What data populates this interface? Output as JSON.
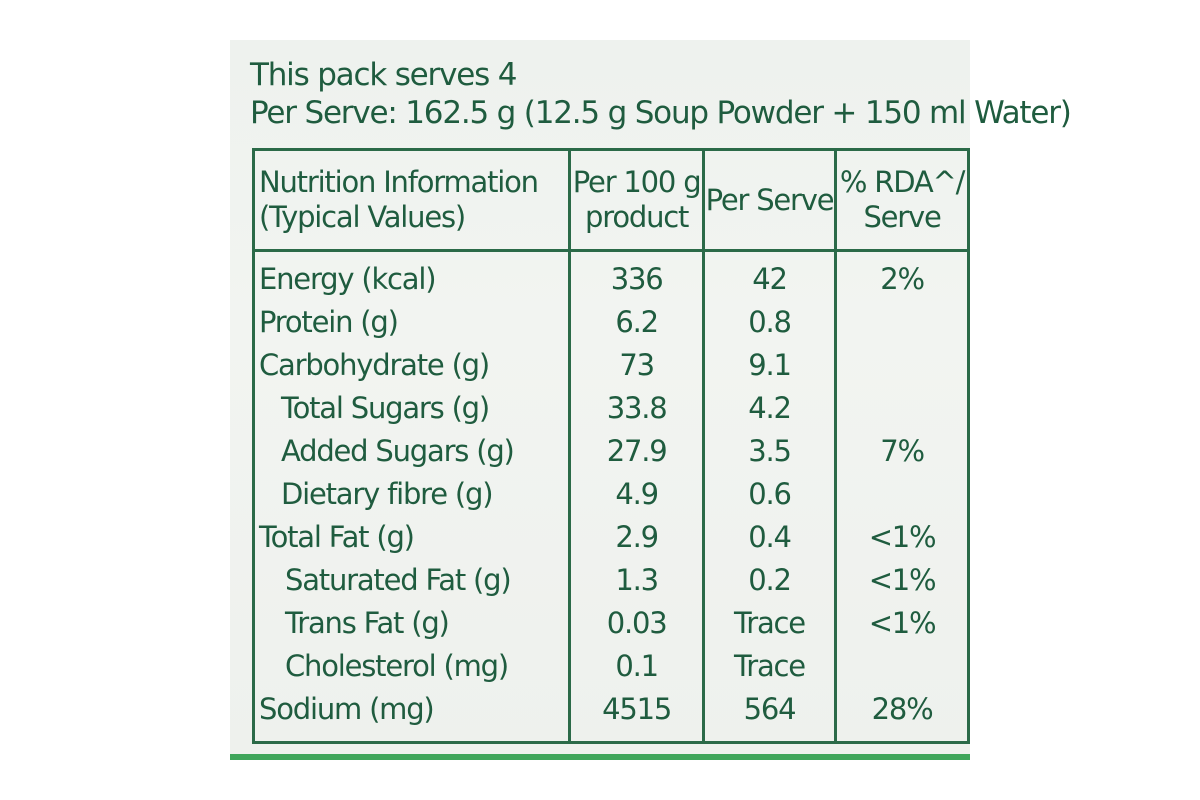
{
  "serves_line": "This pack serves 4",
  "per_serve_line": "Per Serve: 162.5 g (12.5 g Soup Powder + 150 ml Water)",
  "table": {
    "headers": {
      "name_line1": "Nutrition Information",
      "name_line2": "(Typical Values)",
      "per100_line1": "Per 100 g",
      "per100_line2": "product",
      "perserve": "Per Serve",
      "rda_line1": "% RDA^/",
      "rda_line2": "Serve"
    },
    "rows": [
      {
        "name": "Energy (kcal)",
        "per100": "336",
        "perserve": "42",
        "rda": "2%"
      },
      {
        "name": "Protein (g)",
        "per100": "6.2",
        "perserve": "0.8",
        "rda": ""
      },
      {
        "name": "Carbohydrate (g)",
        "per100": "73",
        "perserve": "9.1",
        "rda": ""
      },
      {
        "name": "Total Sugars (g)",
        "per100": "33.8",
        "perserve": "4.2",
        "rda": ""
      },
      {
        "name": "Added Sugars (g)",
        "per100": "27.9",
        "perserve": "3.5",
        "rda": "7%"
      },
      {
        "name": "Dietary fibre (g)",
        "per100": "4.9",
        "perserve": "0.6",
        "rda": ""
      },
      {
        "name": "Total Fat (g)",
        "per100": "2.9",
        "perserve": "0.4",
        "rda": "<1%"
      },
      {
        "name": "Saturated Fat (g)",
        "per100": "1.3",
        "perserve": "0.2",
        "rda": "<1%"
      },
      {
        "name": "Trans Fat (g)",
        "per100": "0.03",
        "perserve": "Trace",
        "rda": "<1%"
      },
      {
        "name": "Cholesterol (mg)",
        "per100": "0.1",
        "perserve": "Trace",
        "rda": ""
      },
      {
        "name": "Sodium (mg)",
        "per100": "4515",
        "perserve": "564",
        "rda": "28%"
      }
    ]
  },
  "colors": {
    "ink": "#1f5c3f",
    "border": "#2b6a48",
    "background": "#eef2ee",
    "accent_green": "#3fa55a"
  }
}
